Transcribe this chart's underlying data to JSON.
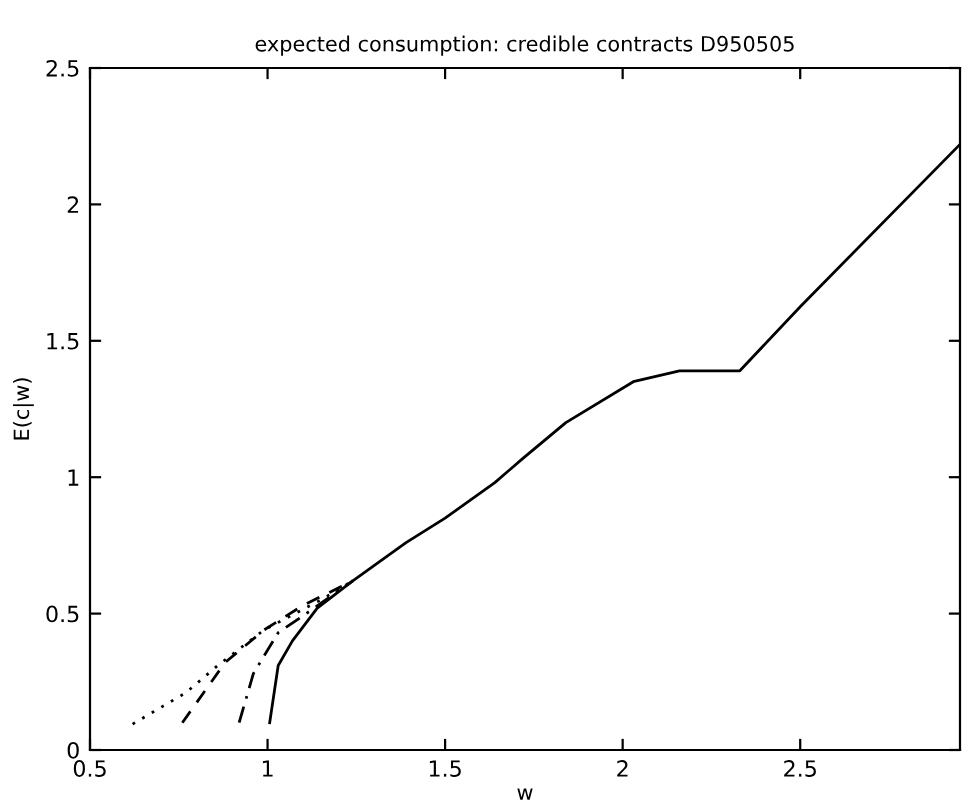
{
  "chart_data": {
    "type": "line",
    "title": "expected consumption: credible contracts D950505",
    "xlabel": "w",
    "ylabel": "E(c|w)",
    "xlim": [
      0.5,
      2.95
    ],
    "ylim": [
      0,
      2.5
    ],
    "xticks": [
      0.5,
      1,
      1.5,
      2,
      2.5
    ],
    "yticks": [
      0,
      0.5,
      1,
      1.5,
      2,
      2.5
    ],
    "grid": false,
    "legend": false,
    "series": [
      {
        "color": "#000000",
        "line_style": "solid",
        "x": [
          1.006,
          1.03,
          1.07,
          1.14,
          1.24,
          1.39,
          1.5,
          1.64,
          1.72,
          1.84,
          2.03,
          2.16,
          2.33,
          2.5,
          2.95
        ],
        "values": [
          0.1,
          0.31,
          0.4,
          0.52,
          0.62,
          0.76,
          0.85,
          0.98,
          1.07,
          1.2,
          1.35,
          1.39,
          1.39,
          1.625,
          2.22
        ]
      },
      {
        "color": "#000000",
        "line_style": "dashdot",
        "x": [
          0.92,
          0.96,
          1.03,
          1.12,
          1.24
        ],
        "values": [
          0.1,
          0.28,
          0.43,
          0.51,
          0.62
        ]
      },
      {
        "color": "#000000",
        "line_style": "dashed",
        "x": [
          0.76,
          0.88,
          0.99,
          1.1,
          1.24
        ],
        "values": [
          0.1,
          0.32,
          0.44,
          0.53,
          0.62
        ]
      },
      {
        "color": "#000000",
        "line_style": "dotted",
        "x": [
          0.62,
          0.77,
          0.86,
          0.99,
          1.15,
          1.24
        ],
        "values": [
          0.095,
          0.21,
          0.31,
          0.44,
          0.55,
          0.62
        ]
      }
    ]
  }
}
